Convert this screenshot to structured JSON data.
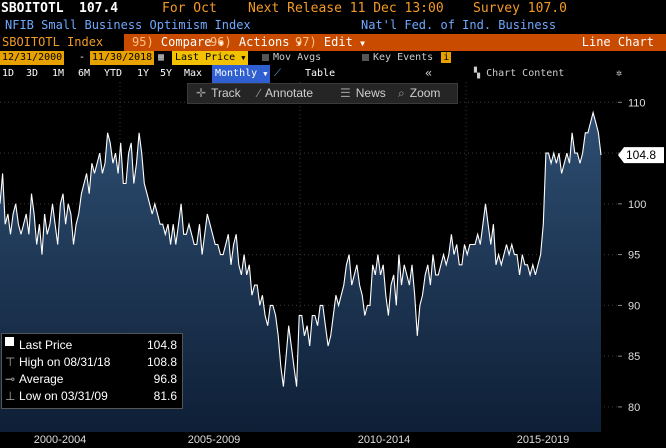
{
  "header": {
    "ticker": "SBOITOTL",
    "last_value": "107.4",
    "for_label": "For Oct",
    "next_release": "Next Release 11 Dec 13:00",
    "survey": "Survey 107.0",
    "title": "NFIB Small Business Optimism Index",
    "source": "Nat'l Fed. of Ind. Business"
  },
  "command_bar": {
    "security": "SBOITOTL Index",
    "compare_num": "95)",
    "compare_label": "Compare",
    "actions_num": "96)",
    "actions_label": "Actions",
    "edit_num": "97)",
    "edit_label": "Edit",
    "chart_type": "Line Chart"
  },
  "range_bar": {
    "start_date": "12/31/2000",
    "dash": "-",
    "end_date": "11/30/2018",
    "last_price": "Last Price",
    "mov_avgs": "Mov Avgs",
    "key_events": "Key Events"
  },
  "period_bar": {
    "periods": [
      "1D",
      "3D",
      "1M",
      "6M",
      "YTD",
      "1Y",
      "5Y",
      "Max"
    ],
    "frequency": "Monthly",
    "table": "Table",
    "collapse": "«",
    "chart_content": "Chart Content"
  },
  "toolbar": {
    "track": "Track",
    "annotate": "Annotate",
    "news": "News",
    "zoom": "Zoom"
  },
  "legend": {
    "last_price_label": "Last Price",
    "last_price_value": "104.8",
    "high_label": "High on 08/31/18",
    "high_value": "108.8",
    "average_label": "Average",
    "average_value": "96.8",
    "low_label": "Low on 03/31/09",
    "low_value": "81.6"
  },
  "current_value_tag": "104.8",
  "x_axis_labels": [
    "2000-2004",
    "2005-2009",
    "2010-2014",
    "2015-2019"
  ],
  "colors": {
    "command_bar": "#c84b00",
    "series_line": "#ffffff",
    "area_top": "#2e4e72",
    "area_bottom": "#0e1f36"
  },
  "chart_data": {
    "type": "area",
    "series": [
      {
        "values": [
          100,
          103,
          98,
          99,
          97,
          99,
          100,
          98,
          97,
          98,
          99,
          97,
          101,
          99,
          96,
          98,
          95,
          99,
          97,
          98,
          100,
          98,
          96,
          100,
          101,
          98,
          100,
          99,
          96,
          98,
          99,
          101,
          102,
          103,
          101,
          104,
          103,
          104,
          105,
          103,
          104,
          107,
          106,
          104,
          105,
          103,
          106,
          102,
          102,
          105,
          106,
          102,
          104,
          107,
          105,
          102,
          101,
          100,
          99,
          100,
          99,
          98,
          98,
          97,
          98,
          96,
          98,
          96,
          98,
          100,
          97,
          97,
          98,
          97,
          96,
          96,
          98,
          95,
          97,
          99,
          98,
          97,
          96,
          96,
          95,
          95,
          96,
          97,
          94,
          96,
          97,
          94,
          93,
          95,
          93,
          94,
          91,
          92,
          92,
          90,
          91,
          89,
          88,
          90,
          90,
          89,
          87,
          84,
          82,
          85,
          88,
          86,
          84,
          82,
          89,
          89,
          87,
          88,
          86,
          89,
          89,
          88,
          90,
          90,
          88,
          86,
          87,
          89,
          91,
          90,
          91,
          92,
          94,
          95,
          92,
          93,
          94,
          92,
          91,
          89,
          90,
          90,
          94,
          93,
          95,
          93,
          94,
          91,
          89,
          92,
          93,
          90,
          95,
          92,
          94,
          93,
          92,
          94,
          91,
          87,
          90,
          91,
          93,
          94,
          92,
          95,
          93,
          93,
          94,
          95,
          94,
          95,
          97,
          95,
          96,
          94,
          94,
          96,
          95,
          96,
          96,
          96,
          97,
          96,
          98,
          100,
          98,
          96,
          98,
          94,
          95,
          94,
          95,
          96,
          95,
          96,
          95,
          95,
          93,
          95,
          94,
          94,
          93,
          94,
          93,
          94,
          95,
          98,
          105,
          105,
          104,
          105,
          104,
          105,
          103,
          104,
          105,
          104,
          107,
          105,
          105,
          104,
          105,
          107,
          107,
          108,
          109,
          108,
          107,
          104.8
        ]
      }
    ],
    "x_axis_labels": [
      "2000-2004",
      "2005-2009",
      "2010-2014",
      "2015-2019"
    ],
    "y_ticks": [
      80,
      85,
      90,
      95,
      100,
      105,
      110
    ],
    "ylim": [
      79.5,
      112
    ],
    "grid": true,
    "legend": {
      "last_price": 104.8,
      "high": 108.8,
      "high_date": "08/31/18",
      "average": 96.8,
      "low": 81.6,
      "low_date": "03/31/09"
    }
  }
}
